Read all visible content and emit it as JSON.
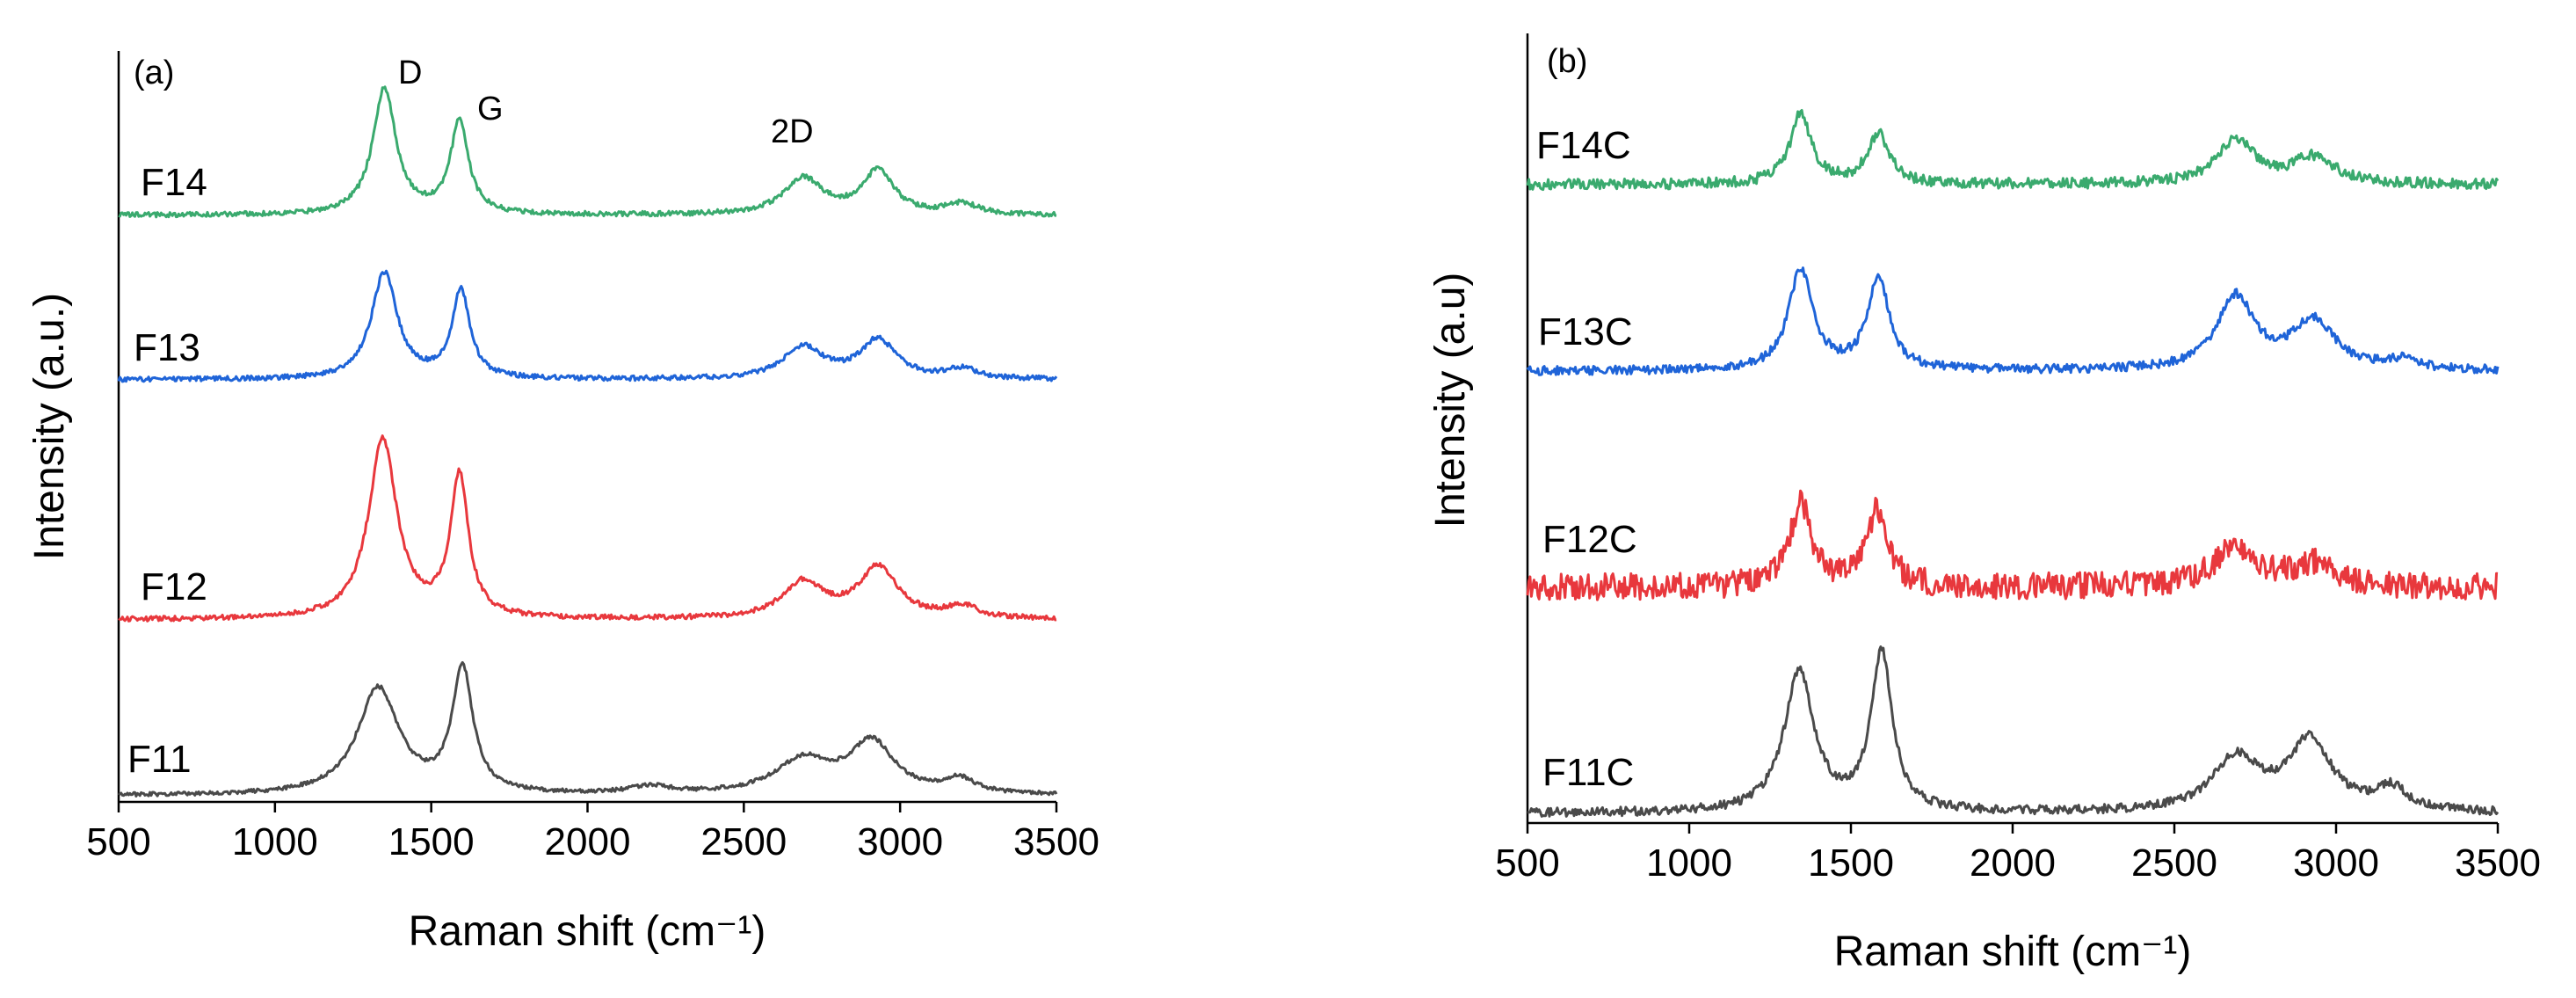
{
  "chart_data": [
    {
      "panel": "(a)",
      "type": "line",
      "xlabel": "Raman shift (cm⁻¹)",
      "ylabel": "Intensity (a.u.)",
      "xlim": [
        500,
        3500
      ],
      "xticks": [
        "500",
        "1000",
        "1500",
        "2000",
        "2500",
        "3000",
        "3500"
      ],
      "y_ticks_shown": false,
      "peak_labels": [
        {
          "text": "D",
          "x": 1350
        },
        {
          "text": "G",
          "x": 1590
        },
        {
          "text": "2D",
          "x": 2690
        }
      ],
      "series": [
        {
          "name": "F14",
          "color": "#3aaa6e",
          "baseline": 0.0,
          "noise": 0.05,
          "peaks": [
            [
              1350,
              2.6,
              45
            ],
            [
              1590,
              1.9,
              35
            ],
            [
              2690,
              0.75,
              75
            ],
            [
              2930,
              0.9,
              60
            ],
            [
              3200,
              0.22,
              60
            ]
          ]
        },
        {
          "name": "F13",
          "color": "#1f64d8",
          "baseline": 0.0,
          "noise": 0.05,
          "peaks": [
            [
              1350,
              2.2,
              50
            ],
            [
              1595,
              1.8,
              35
            ],
            [
              2690,
              0.65,
              80
            ],
            [
              2930,
              0.8,
              70
            ],
            [
              3200,
              0.2,
              60
            ]
          ]
        },
        {
          "name": "F12",
          "color": "#e8383d",
          "baseline": 0.0,
          "noise": 0.05,
          "peaks": [
            [
              1345,
              3.7,
              55
            ],
            [
              1590,
              2.9,
              35
            ],
            [
              2690,
              0.75,
              80
            ],
            [
              2930,
              1.05,
              75
            ],
            [
              3200,
              0.25,
              60
            ]
          ]
        },
        {
          "name": "F11",
          "color": "#4a4a4a",
          "baseline": 0.0,
          "noise": 0.04,
          "peaks": [
            [
              1330,
              2.2,
              80
            ],
            [
              1600,
              2.55,
              40
            ],
            [
              2690,
              0.7,
              110
            ],
            [
              2910,
              1.05,
              85
            ],
            [
              3190,
              0.3,
              60
            ],
            [
              2200,
              0.15,
              80
            ]
          ]
        }
      ]
    },
    {
      "panel": "(b)",
      "type": "line",
      "xlabel": "Raman shift (cm⁻¹)",
      "ylabel": "Intensity (a.u)",
      "xlim": [
        500,
        3500
      ],
      "xticks": [
        "500",
        "1000",
        "1500",
        "2000",
        "2500",
        "3000",
        "3500"
      ],
      "y_ticks_shown": false,
      "series": [
        {
          "name": "F14C",
          "color": "#3aaa6e",
          "baseline": 0.0,
          "noise": 0.12,
          "peaks": [
            [
              1345,
              1.6,
              40
            ],
            [
              1585,
              1.15,
              40
            ],
            [
              2690,
              1.0,
              70
            ],
            [
              2930,
              0.6,
              80
            ]
          ]
        },
        {
          "name": "F13C",
          "color": "#1f64d8",
          "baseline": 0.0,
          "noise": 0.1,
          "peaks": [
            [
              1345,
              2.3,
              45
            ],
            [
              1585,
              2.1,
              40
            ],
            [
              2690,
              1.65,
              70
            ],
            [
              2930,
              1.1,
              80
            ],
            [
              3200,
              0.2,
              60
            ]
          ]
        },
        {
          "name": "F12C",
          "color": "#e8383d",
          "baseline": 0.0,
          "noise": 0.3,
          "peaks": [
            [
              1345,
              1.9,
              40
            ],
            [
              1580,
              1.7,
              40
            ],
            [
              2690,
              0.9,
              80
            ],
            [
              2930,
              0.5,
              80
            ]
          ]
        },
        {
          "name": "F11C",
          "color": "#4a4a4a",
          "baseline": 0.0,
          "noise": 0.1,
          "peaks": [
            [
              1340,
              3.2,
              55
            ],
            [
              1595,
              3.6,
              40
            ],
            [
              2690,
              1.2,
              90
            ],
            [
              2920,
              1.6,
              80
            ],
            [
              3170,
              0.5,
              60
            ]
          ]
        }
      ]
    }
  ]
}
